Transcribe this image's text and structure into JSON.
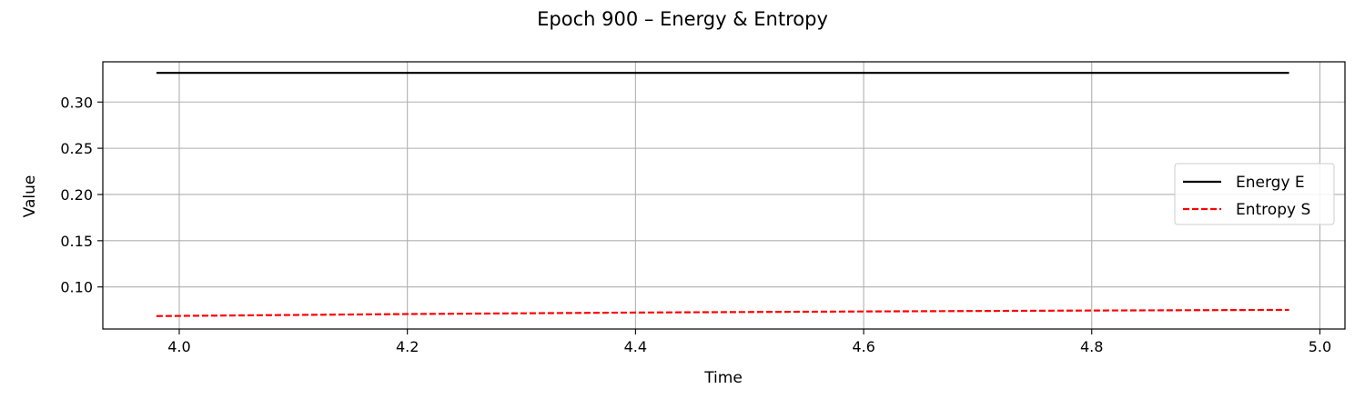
{
  "chart_data": {
    "type": "line",
    "title": "Epoch 900 – Energy & Entropy",
    "xlabel": "Time",
    "ylabel": "Value",
    "xlim": [
      3.933,
      5.022
    ],
    "ylim": [
      0.0545,
      0.3435
    ],
    "xticks": [
      4.0,
      4.2,
      4.4,
      4.6,
      4.8,
      5.0
    ],
    "xtick_labels": [
      "4.0",
      "4.2",
      "4.4",
      "4.6",
      "4.8",
      "5.0"
    ],
    "yticks": [
      0.1,
      0.15,
      0.2,
      0.25,
      0.3
    ],
    "ytick_labels": [
      "0.10",
      "0.15",
      "0.20",
      "0.25",
      "0.30"
    ],
    "grid": true,
    "legend_position": "center-right",
    "series": [
      {
        "name": "Energy E",
        "color": "#000000",
        "style": "solid",
        "x": [
          3.98,
          4.2,
          4.4,
          4.6,
          4.8,
          4.973
        ],
        "y": [
          0.3315,
          0.3315,
          0.3315,
          0.3315,
          0.3315,
          0.3315
        ]
      },
      {
        "name": "Entropy S",
        "color": "#ff0000",
        "style": "dashed",
        "x": [
          3.98,
          4.2,
          4.4,
          4.6,
          4.8,
          4.973
        ],
        "y": [
          0.0685,
          0.0707,
          0.0723,
          0.0735,
          0.0745,
          0.0752
        ]
      }
    ]
  }
}
